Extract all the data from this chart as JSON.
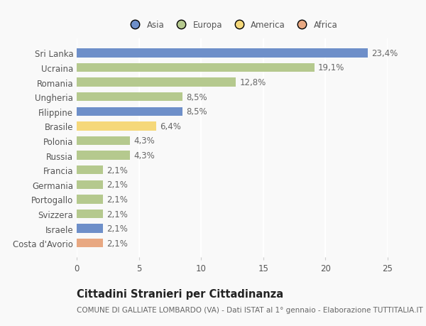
{
  "categories": [
    "Costa d'Avorio",
    "Israele",
    "Svizzera",
    "Portogallo",
    "Germania",
    "Francia",
    "Russia",
    "Polonia",
    "Brasile",
    "Filippine",
    "Ungheria",
    "Romania",
    "Ucraina",
    "Sri Lanka"
  ],
  "values": [
    2.1,
    2.1,
    2.1,
    2.1,
    2.1,
    2.1,
    4.3,
    4.3,
    6.4,
    8.5,
    8.5,
    12.8,
    19.1,
    23.4
  ],
  "labels": [
    "2,1%",
    "2,1%",
    "2,1%",
    "2,1%",
    "2,1%",
    "2,1%",
    "4,3%",
    "4,3%",
    "6,4%",
    "8,5%",
    "8,5%",
    "12,8%",
    "19,1%",
    "23,4%"
  ],
  "colors": [
    "#e8a882",
    "#6e8fc9",
    "#b5c98e",
    "#b5c98e",
    "#b5c98e",
    "#b5c98e",
    "#b5c98e",
    "#b5c98e",
    "#f5d87a",
    "#6e8fc9",
    "#b5c98e",
    "#b5c98e",
    "#b5c98e",
    "#6e8fc9"
  ],
  "legend_labels": [
    "Asia",
    "Europa",
    "America",
    "Africa"
  ],
  "legend_colors": [
    "#6e8fc9",
    "#b5c98e",
    "#f5d87a",
    "#e8a882"
  ],
  "title": "Cittadini Stranieri per Cittadinanza",
  "subtitle": "COMUNE DI GALLIATE LOMBARDO (VA) - Dati ISTAT al 1° gennaio - Elaborazione TUTTITALIA.IT",
  "xlim": [
    0,
    25
  ],
  "xticks": [
    0,
    5,
    10,
    15,
    20,
    25
  ],
  "bg_color": "#f9f9f9",
  "bar_height": 0.6,
  "label_fontsize": 8.5,
  "tick_fontsize": 8.5,
  "title_fontsize": 10.5,
  "subtitle_fontsize": 7.5
}
